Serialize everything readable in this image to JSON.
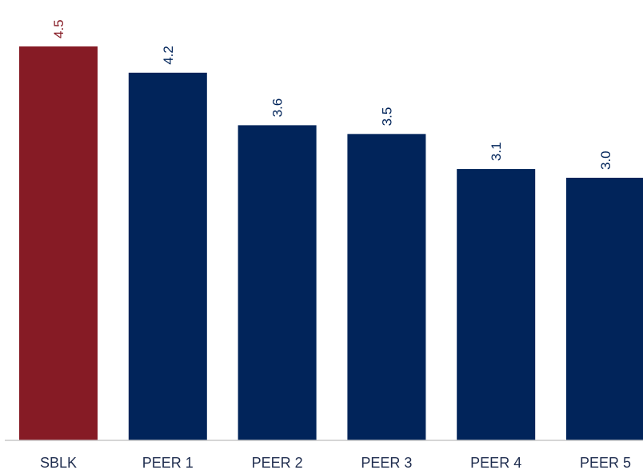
{
  "chart_data": {
    "type": "bar",
    "categories": [
      "SBLK",
      "PEER 1",
      "PEER 2",
      "PEER 3",
      "PEER 4",
      "PEER 5"
    ],
    "values": [
      4.5,
      4.2,
      3.6,
      3.5,
      3.1,
      3.0
    ],
    "value_labels": [
      "4.5",
      "4.2",
      "3.6",
      "3.5",
      "3.1",
      "3.0"
    ],
    "colors": [
      "#861b25",
      "#01245a",
      "#01245a",
      "#01245a",
      "#01245a",
      "#01245a"
    ],
    "label_colors": [
      "#861b25",
      "#01245a",
      "#01245a",
      "#01245a",
      "#01245a",
      "#01245a"
    ],
    "ylim": [
      0,
      4.5
    ],
    "grid": false,
    "legend": "none",
    "title": "",
    "xlabel": "",
    "ylabel": ""
  }
}
